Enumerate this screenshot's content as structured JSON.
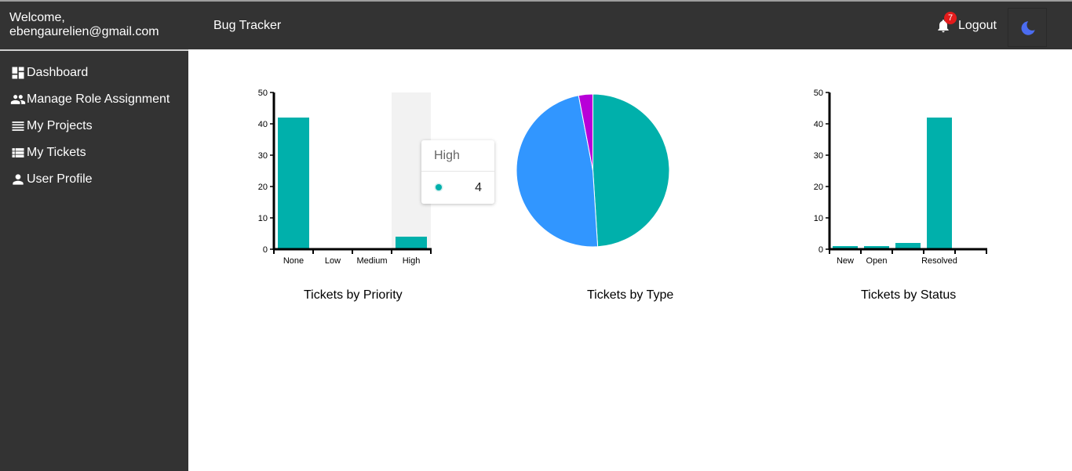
{
  "header": {
    "welcome_line1": "Welcome,",
    "welcome_line2": "ebengaurelien@gmail.com",
    "brand": "Bug Tracker",
    "notification_count": "7",
    "logout_label": "Logout"
  },
  "sidebar": {
    "items": [
      {
        "label": "Dashboard",
        "icon": "dashboard-icon"
      },
      {
        "label": "Manage Role Assignment",
        "icon": "people-icon"
      },
      {
        "label": "My Projects",
        "icon": "list-icon"
      },
      {
        "label": "My Tickets",
        "icon": "ticket-list-icon"
      },
      {
        "label": "User Profile",
        "icon": "person-icon"
      }
    ]
  },
  "colors": {
    "teal": "#00b0ab",
    "blue": "#3196ff",
    "purple": "#b800d8",
    "dark": "#333333",
    "moon": "#4b6cf0"
  },
  "tooltip": {
    "title": "High",
    "value": "4"
  },
  "chart_data": [
    {
      "type": "bar",
      "title": "Tickets by Priority",
      "categories": [
        "None",
        "Low",
        "Medium",
        "High"
      ],
      "values": [
        42,
        0,
        0,
        4
      ],
      "ylim": [
        0,
        50
      ],
      "yticks": [
        0,
        10,
        20,
        30,
        40,
        50
      ],
      "highlighted": "High"
    },
    {
      "type": "pie",
      "title": "Tickets by Type",
      "values": [
        49,
        48,
        3
      ],
      "colors": [
        "#00b0ab",
        "#3196ff",
        "#b800d8"
      ]
    },
    {
      "type": "bar",
      "title": "Tickets by Status",
      "categories": [
        "New",
        "Open",
        "",
        "Resolved",
        ""
      ],
      "values": [
        1,
        1,
        2,
        42,
        0
      ],
      "ylim": [
        0,
        50
      ],
      "yticks": [
        0,
        10,
        20,
        30,
        40,
        50
      ]
    }
  ]
}
